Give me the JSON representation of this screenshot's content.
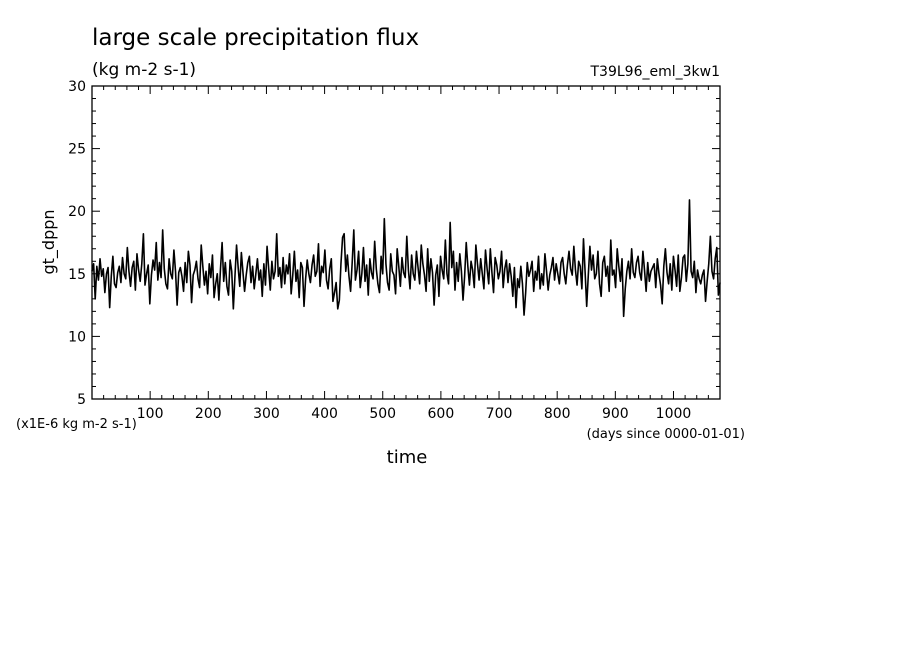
{
  "chart_data": {
    "type": "line",
    "title": "large scale precipitation flux",
    "subtitle": "(kg m-2 s-1)",
    "run_label": "T39L96_eml_3kw1",
    "ylabel": "gt_dppn",
    "xlabel": "time",
    "y_scale_note": "(x1E-6 kg m-2 s-1)",
    "x_units_note": "(days since 0000-01-01)",
    "xlim": [
      0,
      1080
    ],
    "ylim": [
      5,
      30
    ],
    "x_ticks": [
      100,
      200,
      300,
      400,
      500,
      600,
      700,
      800,
      900,
      1000
    ],
    "y_ticks": [
      5,
      10,
      15,
      20,
      25,
      30
    ],
    "grid": false,
    "series": [
      {
        "values": [
          15.2,
          15.8,
          13.0,
          15.6,
          14.5,
          16.2,
          14.8,
          15.4,
          13.5,
          15.0,
          15.5,
          12.3,
          14.8,
          16.4,
          14.2,
          13.9,
          15.1,
          15.6,
          14.3,
          16.3,
          15.0,
          14.6,
          17.1,
          15.2,
          14.0,
          15.5,
          16.0,
          13.7,
          16.6,
          15.3,
          14.4,
          15.8,
          18.2,
          14.1,
          15.0,
          15.7,
          12.6,
          14.9,
          16.1,
          15.3,
          17.5,
          14.5,
          15.9,
          14.7,
          18.5,
          15.4,
          14.2,
          13.8,
          16.2,
          15.0,
          14.6,
          16.9,
          15.2,
          12.5,
          15.1,
          15.5,
          14.8,
          13.6,
          15.9,
          14.3,
          16.8,
          15.7,
          12.7,
          14.9,
          15.3,
          16.0,
          14.6,
          13.9,
          17.3,
          15.6,
          14.1,
          15.2,
          13.4,
          15.8,
          14.7,
          16.5,
          13.1,
          14.2,
          15.0,
          12.9,
          15.4,
          17.5,
          14.4,
          15.9,
          14.0,
          13.3,
          16.1,
          15.2,
          12.2,
          14.8,
          17.3,
          15.5,
          14.0,
          16.7,
          15.1,
          13.6,
          14.9,
          15.9,
          16.4,
          14.3,
          15.6,
          13.8,
          15.0,
          16.2,
          14.5,
          15.3,
          13.2,
          15.8,
          14.1,
          17.2,
          15.4,
          13.7,
          16.0,
          14.6,
          15.2,
          18.2,
          14.8,
          15.5,
          13.9,
          16.3,
          14.2,
          15.7,
          15.0,
          16.6,
          13.4,
          14.9,
          16.8,
          14.4,
          15.3,
          13.1,
          15.9,
          15.5,
          12.4,
          14.6,
          16.1,
          15.0,
          14.3,
          15.7,
          16.5,
          14.8,
          15.2,
          17.4,
          14.0,
          15.6,
          15.1,
          16.9,
          14.5,
          13.8,
          15.4,
          16.2,
          12.8,
          13.5,
          14.3,
          12.2,
          12.9,
          15.8,
          17.9,
          18.2,
          15.2,
          16.5,
          14.8,
          13.6,
          15.9,
          18.5,
          14.5,
          15.3,
          16.8,
          13.9,
          15.0,
          17.1,
          14.4,
          15.7,
          13.3,
          16.2,
          15.1,
          14.6,
          17.6,
          15.4,
          14.2,
          13.5,
          16.4,
          15.0,
          19.4,
          15.8,
          14.3,
          13.7,
          16.6,
          15.2,
          14.9,
          13.4,
          17.0,
          15.6,
          14.0,
          16.3,
          15.1,
          14.7,
          18.0,
          15.3,
          13.8,
          16.5,
          15.0,
          14.5,
          16.8,
          15.5,
          14.2,
          17.3,
          15.8,
          14.9,
          13.6,
          17.0,
          14.4,
          16.2,
          15.1,
          12.5,
          14.9,
          15.7,
          13.2,
          16.4,
          15.3,
          14.6,
          17.7,
          15.0,
          14.2,
          19.1,
          15.5,
          16.8,
          13.7,
          15.9,
          14.4,
          16.6,
          15.2,
          12.9,
          14.8,
          17.5,
          15.6,
          14.1,
          16.0,
          15.3,
          13.9,
          17.3,
          15.8,
          14.5,
          16.2,
          15.0,
          13.8,
          16.9,
          15.4,
          14.2,
          17.0,
          15.1,
          13.5,
          16.3,
          15.7,
          14.6,
          15.2,
          16.8,
          13.9,
          15.4,
          16.1,
          14.3,
          15.8,
          14.8,
          13.2,
          15.5,
          12.3,
          14.6,
          13.9,
          15.6,
          14.2,
          11.7,
          13.5,
          15.9,
          14.8,
          15.3,
          16.0,
          13.6,
          15.2,
          14.5,
          16.4,
          13.8,
          15.0,
          14.1,
          16.6,
          15.2,
          13.7,
          14.9,
          15.5,
          16.3,
          14.5,
          15.8,
          15.0,
          14.2,
          15.9,
          16.3,
          15.0,
          14.2,
          15.7,
          16.8,
          15.4,
          14.9,
          17.2,
          15.3,
          14.1,
          16.0,
          15.6,
          13.8,
          17.8,
          15.2,
          12.4,
          14.9,
          17.2,
          15.3,
          16.5,
          14.6,
          15.0,
          16.8,
          14.2,
          13.2,
          15.9,
          16.4,
          14.8,
          15.6,
          13.6,
          17.7,
          14.9,
          15.3,
          13.9,
          17.0,
          15.6,
          14.4,
          16.2,
          11.6,
          13.8,
          15.2,
          16.0,
          14.6,
          17.0,
          15.1,
          14.7,
          15.9,
          16.4,
          15.1,
          14.5,
          16.8,
          15.3,
          13.6,
          15.9,
          14.4,
          15.2,
          15.5,
          15.8,
          13.9,
          16.2,
          15.0,
          14.1,
          12.6,
          15.6,
          17.0,
          15.1,
          14.2,
          15.8,
          13.7,
          16.4,
          15.3,
          14.0,
          16.5,
          13.6,
          14.7,
          16.3,
          16.5,
          14.4,
          15.8,
          20.9,
          15.2,
          14.7,
          16.0,
          13.5,
          15.3,
          14.6,
          14.2,
          14.9,
          15.3,
          12.8,
          14.4,
          15.8,
          18.0,
          15.2,
          14.6,
          16.2,
          17.1,
          13.3,
          14.3
        ]
      }
    ]
  }
}
